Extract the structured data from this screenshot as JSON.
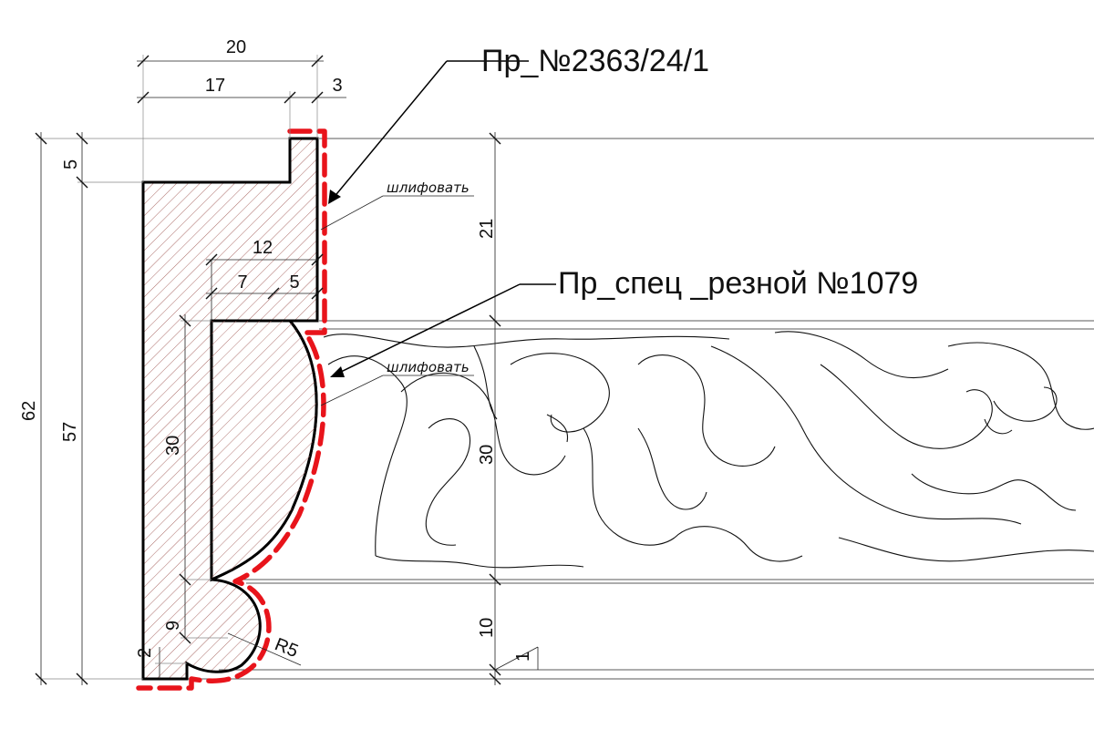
{
  "dimensions": {
    "d20": "20",
    "d17": "17",
    "d3": "3",
    "d5_top": "5",
    "d12": "12",
    "d7": "7",
    "d5": "5",
    "d62": "62",
    "d57": "57",
    "d30_left": "30",
    "d9": "9",
    "d2": "2",
    "r5": "R5",
    "d21": "21",
    "d30_right": "30",
    "d10": "10",
    "d1": "1"
  },
  "labels": {
    "profile_top": "Пр_№2363/24/1",
    "profile_carved": "Пр_спец _резной №1079",
    "sand_1": "шлифовать",
    "sand_2": "шлифовать"
  },
  "colors": {
    "cut_line": "#e8141b",
    "hatch": "#a15a55"
  }
}
